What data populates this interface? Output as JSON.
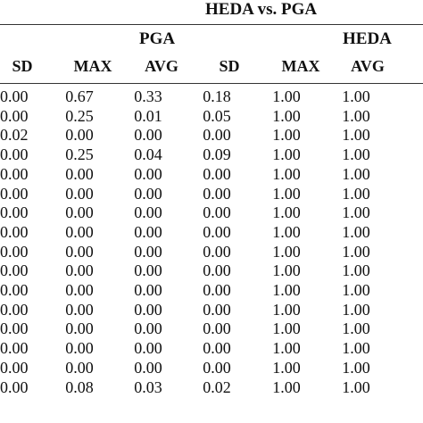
{
  "header": {
    "title": "HEDA vs. PGA",
    "group_pga": "PGA",
    "group_heda": "HEDA"
  },
  "columns": [
    "SD",
    "MAX",
    "AVG",
    "SD",
    "MAX",
    "AVG"
  ],
  "rows": [
    [
      "0.00",
      "0.67",
      "0.33",
      "0.18",
      "1.00",
      "1.00"
    ],
    [
      "0.00",
      "0.25",
      "0.01",
      "0.05",
      "1.00",
      "1.00"
    ],
    [
      "0.02",
      "0.00",
      "0.00",
      "0.00",
      "1.00",
      "1.00"
    ],
    [
      "0.00",
      "0.25",
      "0.04",
      "0.09",
      "1.00",
      "1.00"
    ],
    [
      "0.00",
      "0.00",
      "0.00",
      "0.00",
      "1.00",
      "1.00"
    ],
    [
      "0.00",
      "0.00",
      "0.00",
      "0.00",
      "1.00",
      "1.00"
    ],
    [
      "0.00",
      "0.00",
      "0.00",
      "0.00",
      "1.00",
      "1.00"
    ],
    [
      "0.00",
      "0.00",
      "0.00",
      "0.00",
      "1.00",
      "1.00"
    ],
    [
      "0.00",
      "0.00",
      "0.00",
      "0.00",
      "1.00",
      "1.00"
    ],
    [
      "0.00",
      "0.00",
      "0.00",
      "0.00",
      "1.00",
      "1.00"
    ],
    [
      "0.00",
      "0.00",
      "0.00",
      "0.00",
      "1.00",
      "1.00"
    ],
    [
      "0.00",
      "0.00",
      "0.00",
      "0.00",
      "1.00",
      "1.00"
    ],
    [
      "0.00",
      "0.00",
      "0.00",
      "0.00",
      "1.00",
      "1.00"
    ],
    [
      "0.00",
      "0.00",
      "0.00",
      "0.00",
      "1.00",
      "1.00"
    ],
    [
      "0.00",
      "0.00",
      "0.00",
      "0.00",
      "1.00",
      "1.00"
    ],
    [
      "0.00",
      "0.08",
      "0.03",
      "0.02",
      "1.00",
      "1.00"
    ]
  ]
}
